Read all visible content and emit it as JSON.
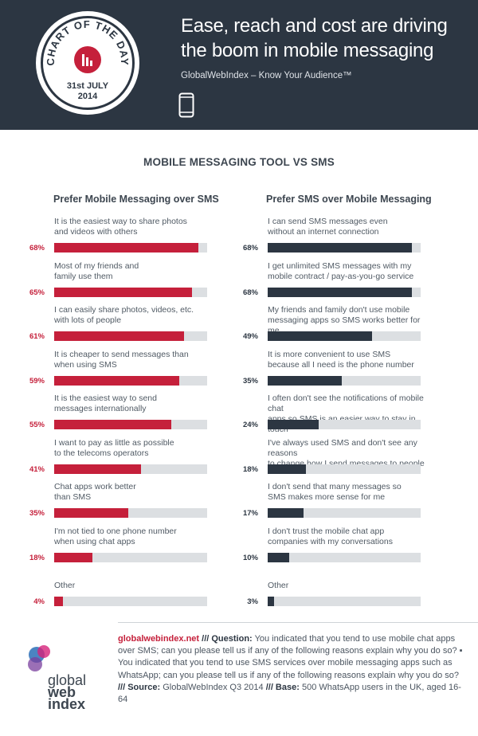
{
  "header": {
    "badge_top": "CHART OF THE DAY",
    "badge_date_line1": "31st JULY",
    "badge_date_line2": "2014",
    "title_line1": "Ease, reach and cost are driving",
    "title_line2": "the boom in mobile messaging",
    "subtitle": "GlobalWebIndex – Know Your Audience™",
    "phone_icon": "smartphone-icon"
  },
  "chart_data": {
    "type": "bar",
    "title": "MOBILE MESSAGING TOOL VS SMS",
    "xlim": [
      0,
      100
    ],
    "groups": [
      {
        "name": "Prefer Mobile Messaging over SMS",
        "color": "#c5203b",
        "items": [
          {
            "label_lines": [
              "It is the easiest way to share photos",
              "and videos with others"
            ],
            "value": 68,
            "value_label": "68%"
          },
          {
            "label_lines": [
              "Most of my friends and",
              "family use them"
            ],
            "value": 65,
            "value_label": "65%"
          },
          {
            "label_lines": [
              "I can easily share photos, videos, etc.",
              "with lots of people"
            ],
            "value": 61,
            "value_label": "61%"
          },
          {
            "label_lines": [
              "It is cheaper to send messages than",
              "when using SMS"
            ],
            "value": 59,
            "value_label": "59%"
          },
          {
            "label_lines": [
              "It is the easiest way to send",
              "messages internationally"
            ],
            "value": 55,
            "value_label": "55%"
          },
          {
            "label_lines": [
              "I want to pay as little as possible",
              "to the telecoms operators"
            ],
            "value": 41,
            "value_label": "41%"
          },
          {
            "label_lines": [
              "Chat apps work better",
              "than SMS"
            ],
            "value": 35,
            "value_label": "35%"
          },
          {
            "label_lines": [
              "I'm not tied to one phone number",
              "when using chat apps"
            ],
            "value": 18,
            "value_label": "18%"
          },
          {
            "label_lines": [
              "Other"
            ],
            "value": 4,
            "value_label": "4%"
          }
        ]
      },
      {
        "name": "Prefer SMS over Mobile Messaging",
        "color": "#2c3642",
        "items": [
          {
            "label_lines": [
              "I can send SMS messages even",
              "without an internet connection"
            ],
            "value": 68,
            "value_label": "68%"
          },
          {
            "label_lines": [
              "I get unlimited SMS messages with my",
              "mobile contract / pay-as-you-go service"
            ],
            "value": 68,
            "value_label": "68%"
          },
          {
            "label_lines": [
              "My friends and family don't use mobile",
              "messaging apps so SMS works better for me"
            ],
            "value": 49,
            "value_label": "49%"
          },
          {
            "label_lines": [
              "It is more convenient to use SMS",
              "because all I need is the phone number"
            ],
            "value": 35,
            "value_label": "35%"
          },
          {
            "label_lines": [
              "I often don't see the notifications of mobile chat",
              "apps so SMS is an easier way to stay in touch"
            ],
            "value": 24,
            "value_label": "24%"
          },
          {
            "label_lines": [
              "I've always used SMS and don't see any reasons",
              "to change how I send messages to people"
            ],
            "value": 18,
            "value_label": "18%"
          },
          {
            "label_lines": [
              "I don't send that many messages so",
              "SMS makes more sense for me"
            ],
            "value": 17,
            "value_label": "17%"
          },
          {
            "label_lines": [
              "I don't trust the mobile chat app",
              "companies with my conversations"
            ],
            "value": 10,
            "value_label": "10%"
          },
          {
            "label_lines": [
              "Other"
            ],
            "value": 3,
            "value_label": "3%"
          }
        ]
      }
    ]
  },
  "footer": {
    "link": "globalwebindex.net",
    "q_label": "/// Question:",
    "q_text": "You indicated that you tend to use mobile chat apps over SMS; can you please tell us if any of the following reasons explain why you do so? ▪ You indicated that you tend to use SMS services over mobile messaging apps such as WhatsApp; can you please tell us if any of the following reasons explain why you do so?",
    "source_label": "/// Source:",
    "source_text": "GlobalWebIndex Q3 2014",
    "base_label": "/// Base:",
    "base_text": "500 WhatsApp users in the UK, aged 16-64",
    "logo_line1": "global",
    "logo_line2": "web",
    "logo_line3": "index"
  }
}
